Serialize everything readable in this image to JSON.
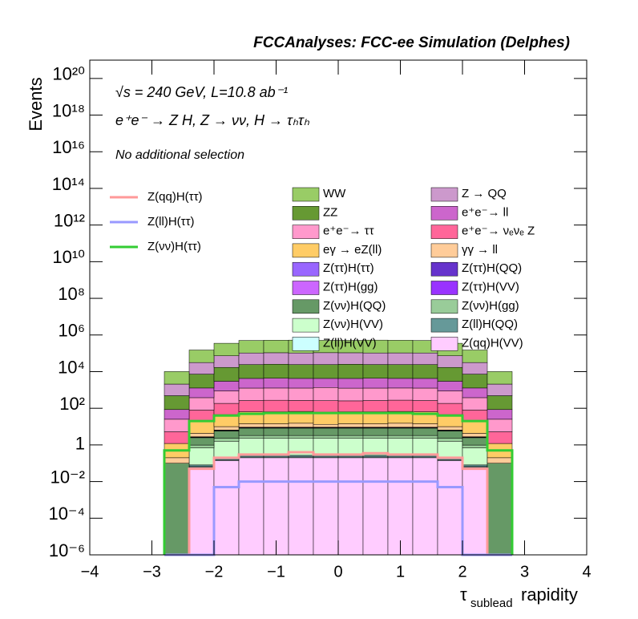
{
  "chart_data": {
    "type": "stacked_histogram",
    "title": "FCCAnalyses: FCC-ee Simulation (Delphes)",
    "annotations": [
      "√s = 240 GeV, L=10.8 ab⁻¹",
      "e⁺e⁻ → Z H, Z → νν, H → τₕτₕ",
      "No additional selection"
    ],
    "x_label": {
      "symbol": "τ",
      "subscript": "sublead",
      "text": "rapidity"
    },
    "y_label": "Events",
    "log_y": true,
    "xlim": [
      -4,
      4
    ],
    "xticks": [
      {
        "value": -4,
        "label": "−4"
      },
      {
        "value": -3,
        "label": "−3"
      },
      {
        "value": -2,
        "label": "−2"
      },
      {
        "value": -1,
        "label": "−1"
      },
      0,
      1,
      2,
      3,
      4
    ],
    "ylim": [
      1e-06,
      1e+21
    ],
    "yticks": [
      {
        "value": 1e-06,
        "label": "10⁻⁶"
      },
      {
        "value": 0.0001,
        "label": "10⁻⁴"
      },
      {
        "value": 0.01,
        "label": "10⁻²"
      },
      1,
      {
        "value": 100,
        "label": "10²"
      },
      {
        "value": 10000.0,
        "label": "10⁴"
      },
      {
        "value": 1000000.0,
        "label": "10⁶"
      },
      {
        "value": 100000000.0,
        "label": "10⁸"
      },
      {
        "value": 10000000000.0,
        "label": "10¹⁰"
      },
      {
        "value": 1000000000000.0,
        "label": "10¹²"
      },
      {
        "value": 100000000000000.0,
        "label": "10¹⁴"
      },
      {
        "value": 1e+16,
        "label": "10¹⁶"
      },
      {
        "value": 1e+18,
        "label": "10¹⁸"
      },
      {
        "value": 1e+20,
        "label": "10²⁰"
      }
    ],
    "bins": [
      -2.8,
      -2.4,
      -2.0,
      -1.6,
      -1.2,
      -0.8,
      -0.4,
      0,
      0.4,
      0.8,
      1.2,
      1.6,
      2.0,
      2.4,
      2.8
    ],
    "series": [
      {
        "name": "WW",
        "color": "#99cc66",
        "values": [
          8000,
          120000,
          280000,
          400000,
          410000,
          420000,
          400000,
          400000,
          420000,
          410000,
          400000,
          280000,
          120000,
          8000
        ]
      },
      {
        "name": "Z → QQ",
        "color": "#cc99cc",
        "values": [
          1600,
          24000,
          56000,
          80000,
          82000,
          80000,
          84000,
          82000,
          80000,
          81000,
          80000,
          56000,
          24000,
          1600
        ]
      },
      {
        "name": "ZZ",
        "color": "#669933",
        "values": [
          400,
          6000,
          14000,
          20000,
          21000,
          20000,
          20000,
          21000,
          20000,
          20000,
          20000,
          14000,
          6000,
          400
        ]
      },
      {
        "name": "e⁺e⁻→ ll",
        "color": "#cc66cc",
        "values": [
          60,
          900,
          2100,
          3000,
          3100,
          3000,
          2900,
          3000,
          3100,
          3000,
          3000,
          2100,
          900,
          60
        ]
      },
      {
        "name": "e⁺e⁻→ ττ",
        "color": "#ff99cc",
        "values": [
          20,
          300,
          700,
          1000,
          1000,
          1000,
          1100,
          1000,
          1000,
          1000,
          1000,
          700,
          300,
          20
        ]
      },
      {
        "name": "e⁺e⁻→ νₑνₑ Z",
        "color": "#ff6699",
        "values": [
          4,
          60,
          140,
          200,
          210,
          200,
          200,
          190,
          200,
          210,
          200,
          140,
          60,
          4
        ]
      },
      {
        "name": "eγ → eZ(ll)",
        "color": "#ffcc66",
        "values": [
          1,
          15,
          35,
          50,
          50,
          52,
          48,
          50,
          50,
          52,
          50,
          35,
          15,
          1
        ]
      },
      {
        "name": "γγ → ll",
        "color": "#ffcc99",
        "values": [
          0.1,
          1.5,
          3.5,
          5,
          5,
          6,
          4,
          5,
          5,
          6,
          5,
          3.5,
          1.5,
          0.1
        ]
      },
      {
        "name": "Z(ττ)H(ττ)",
        "color": "#9966ff",
        "values": [
          0,
          0.15,
          0.35,
          0.5,
          0.5,
          0.5,
          0.5,
          0.5,
          0.5,
          0.5,
          0.5,
          0.35,
          0.15,
          0
        ]
      },
      {
        "name": "Z(ττ)H(QQ)",
        "color": "#6633cc",
        "values": [
          0,
          0.1,
          0.2,
          0.3,
          0.3,
          0.3,
          0.3,
          0.3,
          0.3,
          0.3,
          0.3,
          0.2,
          0.1,
          0
        ]
      },
      {
        "name": "Z(ττ)H(gg)",
        "color": "#cc66ff",
        "values": [
          0,
          0.03,
          0.07,
          0.1,
          0.1,
          0.1,
          0.1,
          0.1,
          0.1,
          0.1,
          0.1,
          0.07,
          0.03,
          0
        ]
      },
      {
        "name": "Z(ττ)H(VV)",
        "color": "#9933ff",
        "values": [
          0,
          0.03,
          0.07,
          0.1,
          0.1,
          0.1,
          0.1,
          0.1,
          0.1,
          0.1,
          0.1,
          0.07,
          0.03,
          0
        ]
      },
      {
        "name": "Z(νν)H(QQ)",
        "color": "#669966",
        "values": [
          0.1,
          1.5,
          3.5,
          5,
          5,
          5,
          5,
          5,
          5,
          5,
          5,
          3.5,
          1.5,
          0.1
        ]
      },
      {
        "name": "Z(νν)H(gg)",
        "color": "#99cc99",
        "values": [
          0,
          0.3,
          0.7,
          1,
          1,
          1,
          1,
          1,
          1,
          1,
          1,
          0.7,
          0.3,
          0
        ]
      },
      {
        "name": "Z(νν)H(VV)",
        "color": "#ccffcc",
        "values": [
          0,
          0.6,
          1.4,
          2,
          2,
          2,
          2,
          2,
          2,
          2,
          2,
          1.4,
          0.6,
          0
        ]
      },
      {
        "name": "Z(ll)H(QQ)",
        "color": "#669999",
        "values": [
          0,
          0.015,
          0.035,
          0.05,
          0.05,
          0.05,
          0.05,
          0.05,
          0.05,
          0.05,
          0.05,
          0.035,
          0.015,
          0
        ]
      },
      {
        "name": "Z(ll)H(VV)",
        "color": "#ccffff",
        "values": [
          0,
          0.006,
          0.014,
          0.02,
          0.02,
          0.02,
          0.02,
          0.02,
          0.02,
          0.02,
          0.02,
          0.014,
          0.006,
          0
        ]
      },
      {
        "name": "Z(qq)H(VV)",
        "color": "#ffccff",
        "values": [
          0,
          0.06,
          0.14,
          0.2,
          0.2,
          0.2,
          0.2,
          0.2,
          0.2,
          0.2,
          0.2,
          0.14,
          0.06,
          0
        ]
      }
    ],
    "lines": [
      {
        "name": "Z(qq)H(ττ)",
        "color": "#ff9999",
        "values": [
          0,
          0.05,
          0.2,
          0.3,
          0.3,
          0.4,
          0.3,
          0.3,
          0.35,
          0.3,
          0.3,
          0.2,
          0.05,
          0
        ]
      },
      {
        "name": "Z(ll)H(ττ)",
        "color": "#9999ff",
        "values": [
          0,
          0,
          0.005,
          0.01,
          0.01,
          0.01,
          0.01,
          0.01,
          0.01,
          0.01,
          0.01,
          0.005,
          0,
          0
        ]
      },
      {
        "name": "Z(νν)H(ττ)",
        "color": "#33cc33",
        "values": [
          0.5,
          20,
          40,
          50,
          55,
          55,
          55,
          55,
          55,
          55,
          50,
          40,
          20,
          0.5
        ]
      }
    ]
  }
}
